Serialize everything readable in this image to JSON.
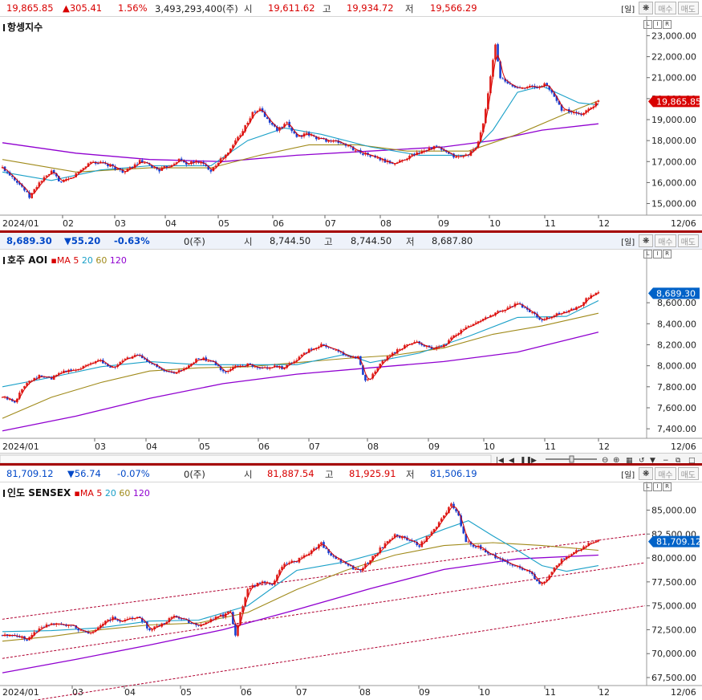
{
  "panels": [
    {
      "id": "hsi",
      "header": {
        "price": "19,865.85",
        "change": "▲305.41",
        "pct": "1.56%",
        "volume": "3,493,293,400(주)",
        "open_label": "시",
        "open": "19,611.62",
        "high_label": "고",
        "high": "19,934.72",
        "low_label": "저",
        "low": "19,566.29",
        "period_button": "[일]",
        "buy_button": "매수",
        "sell_button": "매도"
      },
      "title": "항셍지수",
      "ma_legend": null
    },
    {
      "id": "aoi",
      "header": {
        "price": "8,689.30",
        "change": "▼55.20",
        "pct": "-0.63%",
        "volume": "0(주)",
        "open_label": "시",
        "open": "8,744.50",
        "high_label": "고",
        "high": "8,744.50",
        "low_label": "저",
        "low": "8,687.80",
        "period_button": "[일]",
        "buy_button": "매수",
        "sell_button": "매도"
      },
      "title": "호주 AOI",
      "ma_legend": {
        "label": "MA",
        "periods": [
          "5",
          "20",
          "60",
          "120"
        ]
      }
    },
    {
      "id": "sensex",
      "header": {
        "price": "81,709.12",
        "change": "▼56.74",
        "pct": "-0.07%",
        "volume": "0(주)",
        "open_label": "시",
        "open": "81,887.54",
        "high_label": "고",
        "high": "81,925.91",
        "low_label": "저",
        "low": "81,506.19",
        "period_button": "[일]",
        "buy_button": "매수",
        "sell_button": "매도"
      },
      "title": "인도 SENSEX",
      "ma_legend": {
        "label": "MA",
        "periods": [
          "5",
          "20",
          "60",
          "120"
        ]
      }
    }
  ],
  "colors": {
    "up": "#e0201c",
    "down": "#1a3fd0",
    "ma5": "#d80000",
    "ma20": "#1aa0c8",
    "ma60": "#a08a1a",
    "ma120": "#9000d0",
    "trend": "#b00030",
    "divider": "#a40000"
  },
  "chart_data": [
    {
      "type": "candlestick",
      "title": "항셍지수",
      "ylim": [
        14600,
        23400
      ],
      "y_ticks": [
        "23,000.00",
        "22,000.00",
        "21,000.00",
        "20,000.00",
        "19,000.00",
        "18,000.00",
        "17,000.00",
        "16,000.00",
        "15,000.00"
      ],
      "x_labels": [
        "2024/01",
        "02",
        "03",
        "04",
        "05",
        "06",
        "07",
        "08",
        "09",
        "10",
        "11",
        "12",
        "12/06"
      ],
      "last_price_label": "19,865.85",
      "close_path": [
        [
          0,
          16700
        ],
        [
          8,
          16300
        ],
        [
          16,
          15800
        ],
        [
          22,
          15300
        ],
        [
          30,
          16000
        ],
        [
          40,
          16500
        ],
        [
          48,
          16000
        ],
        [
          56,
          16200
        ],
        [
          64,
          16600
        ],
        [
          72,
          17000
        ],
        [
          82,
          16900
        ],
        [
          92,
          16700
        ],
        [
          100,
          16500
        ],
        [
          112,
          17000
        ],
        [
          120,
          16800
        ],
        [
          128,
          16600
        ],
        [
          136,
          16800
        ],
        [
          144,
          17100
        ],
        [
          150,
          16900
        ],
        [
          160,
          17000
        ],
        [
          170,
          16600
        ],
        [
          176,
          17000
        ],
        [
          184,
          17400
        ],
        [
          190,
          18000
        ],
        [
          196,
          18500
        ],
        [
          204,
          19300
        ],
        [
          210,
          19500
        ],
        [
          216,
          19000
        ],
        [
          224,
          18500
        ],
        [
          232,
          18800
        ],
        [
          240,
          18200
        ],
        [
          248,
          18300
        ],
        [
          258,
          18100
        ],
        [
          266,
          18000
        ],
        [
          276,
          17900
        ],
        [
          286,
          17600
        ],
        [
          294,
          17400
        ],
        [
          304,
          17200
        ],
        [
          312,
          17000
        ],
        [
          320,
          16900
        ],
        [
          330,
          17200
        ],
        [
          338,
          17400
        ],
        [
          346,
          17600
        ],
        [
          354,
          17700
        ],
        [
          362,
          17400
        ],
        [
          370,
          17200
        ],
        [
          378,
          17300
        ],
        [
          386,
          17600
        ],
        [
          392,
          18800
        ],
        [
          398,
          21000
        ],
        [
          402,
          22600
        ],
        [
          406,
          21000
        ],
        [
          412,
          20700
        ],
        [
          420,
          20500
        ],
        [
          428,
          20600
        ],
        [
          436,
          20500
        ],
        [
          442,
          20700
        ],
        [
          448,
          20300
        ],
        [
          456,
          19500
        ],
        [
          462,
          19400
        ],
        [
          470,
          19200
        ],
        [
          478,
          19500
        ],
        [
          486,
          19866
        ]
      ],
      "ma20": [
        [
          0,
          16500
        ],
        [
          40,
          16100
        ],
        [
          80,
          16600
        ],
        [
          120,
          16800
        ],
        [
          170,
          16800
        ],
        [
          200,
          18000
        ],
        [
          230,
          18600
        ],
        [
          260,
          18300
        ],
        [
          300,
          17700
        ],
        [
          340,
          17300
        ],
        [
          380,
          17300
        ],
        [
          400,
          18500
        ],
        [
          420,
          20300
        ],
        [
          440,
          20600
        ],
        [
          470,
          19800
        ],
        [
          486,
          19700
        ]
      ],
      "ma60": [
        [
          0,
          17100
        ],
        [
          60,
          16500
        ],
        [
          120,
          16700
        ],
        [
          170,
          16700
        ],
        [
          210,
          17300
        ],
        [
          250,
          17800
        ],
        [
          290,
          17800
        ],
        [
          330,
          17500
        ],
        [
          380,
          17500
        ],
        [
          420,
          18300
        ],
        [
          460,
          19300
        ],
        [
          486,
          19900
        ]
      ],
      "ma120": [
        [
          0,
          17900
        ],
        [
          60,
          17400
        ],
        [
          120,
          17100
        ],
        [
          180,
          17000
        ],
        [
          240,
          17300
        ],
        [
          300,
          17500
        ],
        [
          360,
          17700
        ],
        [
          400,
          18000
        ],
        [
          440,
          18500
        ],
        [
          486,
          18800
        ]
      ]
    },
    {
      "type": "candlestick",
      "title": "호주 AOI",
      "ylim": [
        7340,
        8960
      ],
      "y_ticks": [
        "8,600.00",
        "8,400.00",
        "8,200.00",
        "8,000.00",
        "7,800.00",
        "7,600.00",
        "7,400.00"
      ],
      "x_labels": [
        "2024/01",
        "03",
        "04",
        "05",
        "06",
        "07",
        "08",
        "09",
        "10",
        "11",
        "12",
        "12/06"
      ],
      "last_price_label": "8,689.30",
      "close_path": [
        [
          0,
          7700
        ],
        [
          10,
          7660
        ],
        [
          20,
          7850
        ],
        [
          30,
          7900
        ],
        [
          40,
          7880
        ],
        [
          50,
          7950
        ],
        [
          60,
          7960
        ],
        [
          70,
          8020
        ],
        [
          80,
          8050
        ],
        [
          90,
          7980
        ],
        [
          100,
          8060
        ],
        [
          110,
          8100
        ],
        [
          120,
          8040
        ],
        [
          130,
          7950
        ],
        [
          140,
          7920
        ],
        [
          150,
          7980
        ],
        [
          160,
          8070
        ],
        [
          170,
          8050
        ],
        [
          180,
          7940
        ],
        [
          190,
          7990
        ],
        [
          200,
          8010
        ],
        [
          210,
          7970
        ],
        [
          220,
          7990
        ],
        [
          230,
          7980
        ],
        [
          240,
          8060
        ],
        [
          250,
          8150
        ],
        [
          260,
          8200
        ],
        [
          270,
          8160
        ],
        [
          280,
          8090
        ],
        [
          290,
          8080
        ],
        [
          296,
          7850
        ],
        [
          300,
          7880
        ],
        [
          310,
          8050
        ],
        [
          320,
          8130
        ],
        [
          330,
          8200
        ],
        [
          340,
          8220
        ],
        [
          350,
          8150
        ],
        [
          360,
          8200
        ],
        [
          370,
          8300
        ],
        [
          380,
          8380
        ],
        [
          390,
          8430
        ],
        [
          400,
          8490
        ],
        [
          410,
          8540
        ],
        [
          420,
          8590
        ],
        [
          430,
          8520
        ],
        [
          440,
          8430
        ],
        [
          450,
          8480
        ],
        [
          460,
          8510
        ],
        [
          470,
          8560
        ],
        [
          480,
          8680
        ],
        [
          486,
          8690
        ]
      ],
      "ma20": [
        [
          0,
          7800
        ],
        [
          40,
          7890
        ],
        [
          80,
          7990
        ],
        [
          120,
          8040
        ],
        [
          160,
          8010
        ],
        [
          200,
          8010
        ],
        [
          240,
          8010
        ],
        [
          280,
          8110
        ],
        [
          300,
          8030
        ],
        [
          340,
          8120
        ],
        [
          380,
          8280
        ],
        [
          420,
          8460
        ],
        [
          460,
          8470
        ],
        [
          486,
          8620
        ]
      ],
      "ma60": [
        [
          0,
          7500
        ],
        [
          40,
          7700
        ],
        [
          80,
          7840
        ],
        [
          120,
          7950
        ],
        [
          160,
          7980
        ],
        [
          200,
          7990
        ],
        [
          240,
          8030
        ],
        [
          280,
          8070
        ],
        [
          320,
          8100
        ],
        [
          360,
          8170
        ],
        [
          400,
          8300
        ],
        [
          440,
          8380
        ],
        [
          486,
          8500
        ]
      ],
      "ma120": [
        [
          0,
          7380
        ],
        [
          60,
          7520
        ],
        [
          120,
          7690
        ],
        [
          180,
          7830
        ],
        [
          240,
          7920
        ],
        [
          300,
          7980
        ],
        [
          360,
          8040
        ],
        [
          420,
          8130
        ],
        [
          486,
          8320
        ]
      ]
    },
    {
      "type": "candlestick",
      "title": "인도 SENSEX",
      "ylim": [
        67000,
        86800
      ],
      "y_ticks": [
        "85,000.00",
        "82,500.00",
        "80,000.00",
        "77,500.00",
        "75,000.00",
        "72,500.00",
        "70,000.00",
        "67,500.00"
      ],
      "x_labels": [
        "2024/01",
        "03",
        "04",
        "05",
        "06",
        "07",
        "08",
        "09",
        "10",
        "11",
        "12",
        "12/06"
      ],
      "last_price_label": "81,709.12",
      "close_path": [
        [
          0,
          71900
        ],
        [
          10,
          72000
        ],
        [
          20,
          71500
        ],
        [
          30,
          72700
        ],
        [
          40,
          73200
        ],
        [
          50,
          73100
        ],
        [
          60,
          72700
        ],
        [
          70,
          72000
        ],
        [
          80,
          73000
        ],
        [
          90,
          73700
        ],
        [
          100,
          73400
        ],
        [
          110,
          74000
        ],
        [
          120,
          72500
        ],
        [
          130,
          73000
        ],
        [
          140,
          74000
        ],
        [
          150,
          73400
        ],
        [
          160,
          73000
        ],
        [
          170,
          73500
        ],
        [
          180,
          74000
        ],
        [
          186,
          74500
        ],
        [
          190,
          72000
        ],
        [
          194,
          74200
        ],
        [
          200,
          76700
        ],
        [
          210,
          77500
        ],
        [
          220,
          77300
        ],
        [
          230,
          79500
        ],
        [
          240,
          79700
        ],
        [
          250,
          80500
        ],
        [
          260,
          81500
        ],
        [
          270,
          80000
        ],
        [
          280,
          79500
        ],
        [
          290,
          78600
        ],
        [
          300,
          79800
        ],
        [
          310,
          81200
        ],
        [
          320,
          82400
        ],
        [
          330,
          82000
        ],
        [
          340,
          81300
        ],
        [
          350,
          82700
        ],
        [
          360,
          84500
        ],
        [
          366,
          85600
        ],
        [
          372,
          84300
        ],
        [
          378,
          81700
        ],
        [
          388,
          81100
        ],
        [
          400,
          80300
        ],
        [
          410,
          79500
        ],
        [
          420,
          79100
        ],
        [
          430,
          78500
        ],
        [
          440,
          77200
        ],
        [
          450,
          79000
        ],
        [
          460,
          80200
        ],
        [
          470,
          80800
        ],
        [
          480,
          81700
        ],
        [
          486,
          81709
        ]
      ],
      "ma20": [
        [
          0,
          72300
        ],
        [
          40,
          72400
        ],
        [
          80,
          72700
        ],
        [
          120,
          73400
        ],
        [
          160,
          73500
        ],
        [
          200,
          75000
        ],
        [
          240,
          78700
        ],
        [
          280,
          79600
        ],
        [
          320,
          81000
        ],
        [
          360,
          83000
        ],
        [
          380,
          83900
        ],
        [
          400,
          82300
        ],
        [
          420,
          80800
        ],
        [
          440,
          79200
        ],
        [
          460,
          78600
        ],
        [
          486,
          79200
        ]
      ],
      "ma60": [
        [
          0,
          71300
        ],
        [
          40,
          71800
        ],
        [
          80,
          72500
        ],
        [
          120,
          73000
        ],
        [
          160,
          73200
        ],
        [
          200,
          74300
        ],
        [
          240,
          76700
        ],
        [
          280,
          78700
        ],
        [
          320,
          80300
        ],
        [
          360,
          81300
        ],
        [
          400,
          81600
        ],
        [
          440,
          81300
        ],
        [
          486,
          80800
        ]
      ],
      "ma120": [
        [
          0,
          68000
        ],
        [
          60,
          69400
        ],
        [
          120,
          70900
        ],
        [
          180,
          72500
        ],
        [
          240,
          74600
        ],
        [
          300,
          76800
        ],
        [
          360,
          78800
        ],
        [
          420,
          79900
        ],
        [
          486,
          80300
        ]
      ],
      "trendlines": [
        [
          [
            0,
            73600
          ],
          [
            490,
            82500
          ]
        ],
        [
          [
            0,
            69500
          ],
          [
            490,
            79500
          ]
        ],
        [
          [
            0,
            64600
          ],
          [
            490,
            75000
          ]
        ]
      ]
    }
  ]
}
